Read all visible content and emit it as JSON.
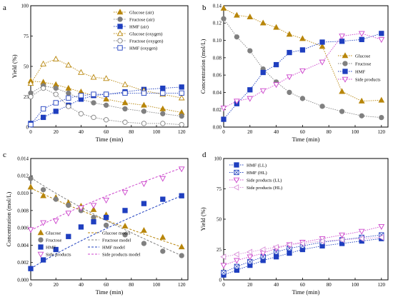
{
  "chart_data": [
    {
      "panel": "a",
      "type": "line",
      "xlabel": "Time (min)",
      "ylabel": "Yield (%)",
      "xlim": [
        0,
        125
      ],
      "ylim": [
        0,
        100
      ],
      "xticks": [
        0,
        20,
        40,
        60,
        80,
        100,
        120
      ],
      "yticks": [
        0,
        25,
        50,
        75,
        100
      ],
      "legend_position": "top-right",
      "series": [
        {
          "name": "Glucose (air)",
          "color": "#b8860b",
          "marker": "triangle",
          "filled": true,
          "x": [
            0,
            10,
            20,
            30,
            40,
            50,
            60,
            75,
            90,
            105,
            120
          ],
          "y": [
            38,
            37,
            35,
            32,
            29,
            26,
            23,
            20,
            18,
            15,
            12
          ]
        },
        {
          "name": "Fructose (air)",
          "color": "#808080",
          "marker": "circle",
          "filled": true,
          "x": [
            0,
            10,
            20,
            30,
            40,
            50,
            60,
            75,
            90,
            105,
            120
          ],
          "y": [
            28,
            34,
            32,
            28,
            23,
            20,
            18,
            15,
            13,
            11,
            9
          ]
        },
        {
          "name": "HMF (air)",
          "color": "#1f3fbf",
          "marker": "square",
          "filled": true,
          "x": [
            0,
            10,
            20,
            30,
            40,
            50,
            60,
            75,
            90,
            105,
            120
          ],
          "y": [
            3,
            8,
            13,
            18,
            23,
            26,
            27,
            29,
            31,
            32,
            33
          ]
        },
        {
          "name": "Glucose (oxygen)",
          "color": "#b8860b",
          "marker": "triangle",
          "filled": false,
          "x": [
            0,
            10,
            20,
            30,
            40,
            50,
            60,
            75,
            90,
            105,
            120
          ],
          "y": [
            36,
            52,
            56,
            51,
            45,
            41,
            40,
            35,
            30,
            27,
            24
          ]
        },
        {
          "name": "Fructose (oxygen)",
          "color": "#808080",
          "marker": "circle",
          "filled": false,
          "x": [
            0,
            10,
            20,
            30,
            40,
            50,
            60,
            75,
            90,
            105,
            120
          ],
          "y": [
            25,
            32,
            27,
            17,
            11,
            8,
            6,
            4,
            3,
            3,
            2
          ]
        },
        {
          "name": "HMF (oxygen)",
          "color": "#1f3fbf",
          "marker": "square",
          "filled": false,
          "x": [
            0,
            10,
            20,
            30,
            40,
            50,
            60,
            75,
            90,
            105,
            120
          ],
          "y": [
            2,
            15,
            20,
            24,
            26,
            27,
            27,
            28,
            28,
            28,
            28
          ]
        }
      ]
    },
    {
      "panel": "b",
      "type": "line",
      "xlabel": "Time (min)",
      "ylabel": "Concentration (mol/L)",
      "xlim": [
        0,
        125
      ],
      "ylim": [
        0,
        0.14
      ],
      "xticks": [
        0,
        20,
        40,
        60,
        80,
        100,
        120
      ],
      "yticks": [
        "0.00",
        "0.02",
        "0.04",
        "0.06",
        "0.08",
        "0.10",
        "0.12",
        "0.14"
      ],
      "legend_position": "right",
      "series": [
        {
          "name": "Glucose",
          "color": "#b8860b",
          "marker": "triangle",
          "filled": true,
          "x": [
            0,
            10,
            20,
            30,
            40,
            50,
            60,
            75,
            90,
            105,
            120
          ],
          "y": [
            0.137,
            0.129,
            0.127,
            0.12,
            0.115,
            0.107,
            0.102,
            0.093,
            0.041,
            0.03,
            0.031
          ]
        },
        {
          "name": "Fructose",
          "color": "#808080",
          "marker": "circle",
          "filled": true,
          "x": [
            0,
            10,
            20,
            30,
            40,
            50,
            60,
            75,
            90,
            105,
            120
          ],
          "y": [
            0.125,
            0.104,
            0.088,
            0.067,
            0.052,
            0.04,
            0.033,
            0.024,
            0.018,
            0.013,
            0.011
          ]
        },
        {
          "name": "HMF",
          "color": "#1f3fbf",
          "marker": "square",
          "filled": true,
          "x": [
            0,
            10,
            20,
            30,
            40,
            50,
            60,
            75,
            90,
            105,
            120
          ],
          "y": [
            0.009,
            0.027,
            0.043,
            0.063,
            0.072,
            0.086,
            0.089,
            0.098,
            0.099,
            0.101,
            0.108
          ]
        },
        {
          "name": "Side products",
          "color": "#cc44cc",
          "marker": "triangle-down",
          "filled": false,
          "x": [
            0,
            10,
            20,
            30,
            40,
            50,
            60,
            75,
            90,
            105,
            120
          ],
          "y": [
            0.022,
            0.03,
            0.033,
            0.042,
            0.049,
            0.058,
            0.065,
            0.075,
            0.105,
            0.108,
            0.101
          ]
        }
      ]
    },
    {
      "panel": "c",
      "type": "line",
      "xlabel": "Time (min)",
      "ylabel": "Concentration (mol/L)",
      "xlim": [
        0,
        125
      ],
      "ylim": [
        0,
        0.014
      ],
      "xticks": [
        0,
        20,
        40,
        60,
        80,
        100,
        120
      ],
      "yticks": [
        "0.000",
        "0.002",
        "0.004",
        "0.006",
        "0.008",
        "0.010",
        "0.012",
        "0.014"
      ],
      "legend_position": "bottom",
      "series": [
        {
          "name": "Glucose",
          "color": "#b8860b",
          "marker": "triangle",
          "filled": true,
          "x": [
            0,
            10,
            20,
            30,
            40,
            50,
            60,
            75,
            90,
            105,
            120
          ],
          "y": [
            0.0107,
            0.0097,
            0.0095,
            0.0089,
            0.0085,
            0.0081,
            0.0075,
            0.0062,
            0.0057,
            0.0049,
            0.0038
          ]
        },
        {
          "name": "Fructose",
          "color": "#808080",
          "marker": "circle",
          "filled": true,
          "x": [
            0,
            10,
            20,
            30,
            40,
            50,
            60,
            75,
            90,
            105,
            120
          ],
          "y": [
            0.0117,
            0.0104,
            0.0093,
            0.0086,
            0.008,
            0.0072,
            0.0063,
            0.0052,
            0.0042,
            0.0033,
            0.0028
          ]
        },
        {
          "name": "HMF",
          "color": "#1f3fbf",
          "marker": "square",
          "filled": true,
          "x": [
            0,
            10,
            20,
            30,
            40,
            50,
            60,
            75,
            90,
            105,
            120
          ],
          "y": [
            0.0013,
            0.0023,
            0.0035,
            0.005,
            0.0061,
            0.0067,
            0.0072,
            0.008,
            0.0088,
            0.0093,
            0.0097
          ]
        },
        {
          "name": "Side products",
          "color": "#cc44cc",
          "marker": "triangle-down",
          "filled": false,
          "x": [
            0,
            10,
            20,
            30,
            40,
            50,
            60,
            75,
            90,
            105,
            120
          ],
          "y": [
            0.0058,
            0.0066,
            0.0068,
            0.0077,
            0.0083,
            0.0086,
            0.0092,
            0.0101,
            0.0111,
            0.0117,
            0.0128
          ]
        }
      ],
      "models": [
        {
          "name": "Glucose model",
          "color": "#b8860b",
          "from": [
            0,
            0.0106
          ],
          "to": [
            120,
            0.0038
          ]
        },
        {
          "name": "Fructose model",
          "color": "#808080",
          "from": [
            0,
            0.0118
          ],
          "to": [
            120,
            0.0028
          ]
        },
        {
          "name": "HMF model",
          "color": "#1f3fbf",
          "from": [
            0,
            0.0013
          ],
          "to": [
            120,
            0.0097
          ]
        },
        {
          "name": "Side products model",
          "color": "#cc44cc",
          "from": [
            0,
            0.0057
          ],
          "to": [
            120,
            0.0129
          ]
        }
      ]
    },
    {
      "panel": "d",
      "type": "line",
      "xlabel": "Time (min)",
      "ylabel": "Yield (%)",
      "xlim": [
        0,
        125
      ],
      "ylim": [
        0,
        100
      ],
      "xticks": [
        0,
        20,
        40,
        60,
        80,
        100,
        120
      ],
      "yticks": [
        0,
        25,
        50,
        75,
        100
      ],
      "legend_position": "top-left",
      "series": [
        {
          "name": "HMF (LL)",
          "color": "#1f3fbf",
          "marker": "square",
          "filled": true,
          "x": [
            0,
            10,
            20,
            30,
            40,
            50,
            60,
            75,
            90,
            105,
            120
          ],
          "y": [
            4,
            8,
            12,
            16,
            19,
            22,
            25,
            28,
            30,
            32,
            34
          ]
        },
        {
          "name": "HMF (HL)",
          "color": "#1f3fbf",
          "marker": "square-x",
          "filled": false,
          "x": [
            0,
            10,
            20,
            30,
            40,
            50,
            60,
            75,
            90,
            105,
            120
          ],
          "y": [
            6,
            11,
            15,
            19,
            23,
            26,
            28,
            31,
            33,
            35,
            37
          ]
        },
        {
          "name": "Side products (LL)",
          "color": "#cc44cc",
          "marker": "triangle-down",
          "filled": false,
          "x": [
            0,
            10,
            20,
            30,
            40,
            50,
            60,
            75,
            90,
            105,
            120
          ],
          "y": [
            12,
            16,
            19,
            22,
            26,
            29,
            31,
            34,
            37,
            40,
            44
          ]
        },
        {
          "name": "Side products (HL)",
          "color": "#d88fd8",
          "marker": "triangle-left",
          "filled": false,
          "x": [
            0,
            10,
            20,
            30,
            40,
            50,
            60,
            75,
            90,
            105,
            120
          ],
          "y": [
            19,
            21,
            23,
            25,
            27,
            29,
            30,
            32,
            33,
            34,
            35
          ]
        }
      ]
    }
  ]
}
